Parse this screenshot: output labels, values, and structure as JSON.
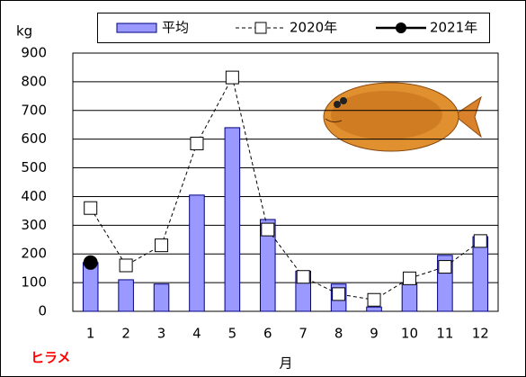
{
  "chart_data": {
    "type": "bar",
    "ylabel": "kg",
    "xlabel": "月",
    "annotation": "ヒラメ",
    "categories": [
      "1",
      "2",
      "3",
      "4",
      "5",
      "6",
      "7",
      "8",
      "9",
      "10",
      "11",
      "12"
    ],
    "series": [
      {
        "name": "平均",
        "type": "bar",
        "color": "#9999ff",
        "values": [
          170,
          110,
          95,
          405,
          640,
          320,
          140,
          95,
          15,
          100,
          195,
          260
        ]
      },
      {
        "name": "2020年",
        "type": "line",
        "color": "#000000",
        "line_style": "dashed",
        "marker": "square",
        "values": [
          360,
          160,
          230,
          585,
          815,
          285,
          120,
          60,
          40,
          115,
          155,
          245
        ]
      },
      {
        "name": "2021年",
        "type": "line",
        "color": "#000000",
        "line_style": "solid",
        "marker": "circle",
        "values": [
          170,
          null,
          null,
          null,
          null,
          null,
          null,
          null,
          null,
          null,
          null,
          null
        ]
      }
    ],
    "ylim": [
      0,
      900
    ],
    "yticks": [
      0,
      100,
      200,
      300,
      400,
      500,
      600,
      700,
      800,
      900
    ],
    "grid": true,
    "legend": "top"
  }
}
